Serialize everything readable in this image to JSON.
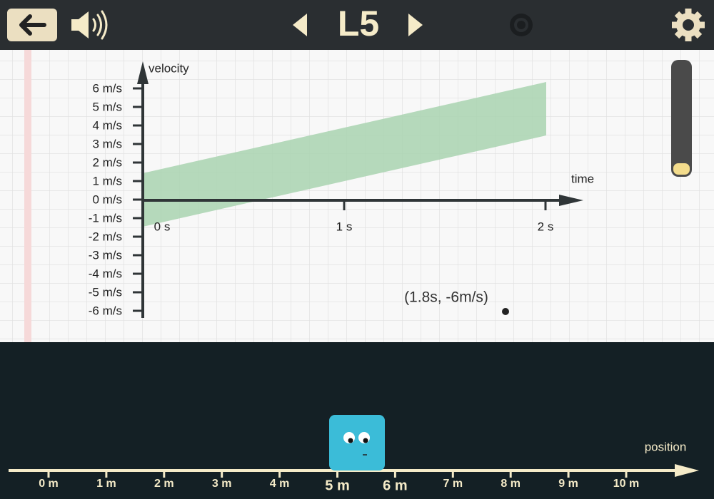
{
  "header": {
    "level": "L5"
  },
  "graph": {
    "y_axis_label": "velocity",
    "x_axis_label": "time",
    "y_ticks": [
      "6 m/s",
      "5 m/s",
      "4 m/s",
      "3 m/s",
      "2 m/s",
      "1 m/s",
      "0 m/s",
      "-1 m/s",
      "-2 m/s",
      "-3 m/s",
      "-4 m/s",
      "-5 m/s",
      "-6 m/s"
    ],
    "x_ticks": [
      "0 s",
      "1 s",
      "2 s"
    ],
    "point_label": "(1.8s, -6m/s)"
  },
  "track": {
    "label": "position",
    "ticks": [
      "0 m",
      "1 m",
      "2 m",
      "3 m",
      "4 m",
      "5 m",
      "6 m",
      "7 m",
      "8 m",
      "9 m",
      "10 m"
    ]
  }
}
